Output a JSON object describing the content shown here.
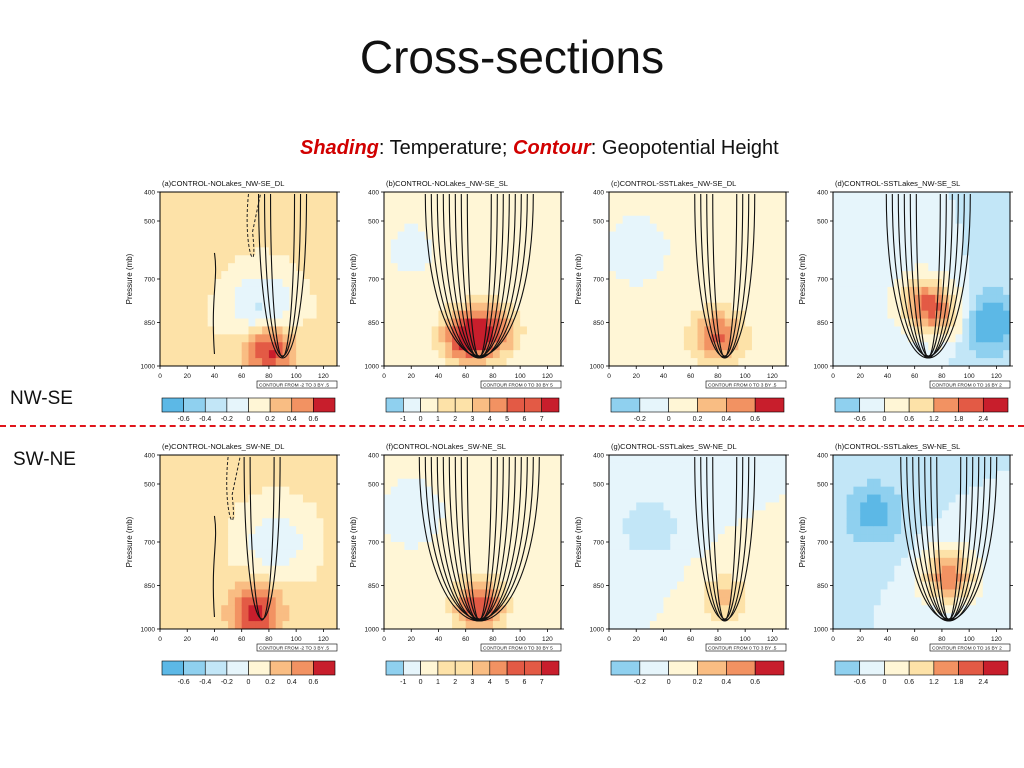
{
  "slide": {
    "title": "Cross-sections",
    "subtitle_parts": {
      "shading": "Shading",
      "shading_rest": ": Temperature; ",
      "contour": "Contour",
      "contour_rest": ": Geopotential Height"
    },
    "row_labels": [
      "NW-SE",
      "SW-NE"
    ]
  },
  "colors": {
    "accent": "#d10000",
    "separator": "#e0141a"
  },
  "chart_data": [
    {
      "type": "heatmap",
      "title": "(a)CONTROL-NOLakes_NW-SE_DL",
      "ylabel": "Pressure (mb)",
      "yticks": [
        "400",
        "500",
        "700",
        "850",
        "1000"
      ],
      "xticks": [
        "0",
        "20",
        "40",
        "60",
        "80",
        "100",
        "120"
      ],
      "xlim": [
        0,
        130
      ],
      "contour_note": "CONTOUR FROM -2 TO 3 BY .5",
      "colorbar": [
        "-0.6",
        "-0.4",
        "-0.2",
        "0",
        "0.2",
        "0.4",
        "0.6"
      ],
      "colorbar_min": -0.8,
      "colorbar_max": 0.8,
      "background": 0.15,
      "contour_center_x": 90,
      "contour_levels": 3,
      "hot_spots": [
        {
          "x": 80,
          "p": 940,
          "v": 0.6
        }
      ],
      "cold_spots": [
        {
          "x": 75,
          "p": 800,
          "v": -0.4
        }
      ],
      "dashed": true
    },
    {
      "type": "heatmap",
      "title": "(b)CONTROL-NOLakes_NW-SE_SL",
      "ylabel": "Pressure (mb)",
      "yticks": [
        "400",
        "500",
        "700",
        "850",
        "1000"
      ],
      "xticks": [
        "0",
        "20",
        "40",
        "60",
        "80",
        "100",
        "120"
      ],
      "xlim": [
        0,
        130
      ],
      "contour_note": "CONTOUR FROM 0 TO 30 BY 5",
      "colorbar": [
        "-1",
        "0",
        "1",
        "2",
        "3",
        "4",
        "5",
        "6",
        "7"
      ],
      "colorbar_min": -2,
      "colorbar_max": 8,
      "background": 0.3,
      "contour_center_x": 70,
      "contour_levels": 8,
      "hot_spots": [
        {
          "x": 60,
          "p": 900,
          "v": 6.5
        },
        {
          "x": 80,
          "p": 880,
          "v": 5
        }
      ],
      "cold_spots": [
        {
          "x": 20,
          "p": 600,
          "v": -0.5
        }
      ],
      "dashed": false
    },
    {
      "type": "heatmap",
      "title": "(c)CONTROL-SSTLakes_NW-SE_DL",
      "ylabel": "Pressure (mb)",
      "yticks": [
        "400",
        "500",
        "700",
        "850",
        "1000"
      ],
      "xticks": [
        "0",
        "20",
        "40",
        "60",
        "80",
        "100",
        "120"
      ],
      "xlim": [
        0,
        130
      ],
      "contour_note": "CONTOUR FROM 0 TO 3 BY .5",
      "colorbar": [
        "-0.2",
        "0",
        "0.2",
        "0.4",
        "0.6"
      ],
      "colorbar_min": -0.4,
      "colorbar_max": 0.8,
      "background": 0.05,
      "contour_center_x": 85,
      "contour_levels": 4,
      "hot_spots": [
        {
          "x": 80,
          "p": 900,
          "v": 0.5
        }
      ],
      "cold_spots": [
        {
          "x": 20,
          "p": 600,
          "v": -0.15
        }
      ],
      "dashed": false
    },
    {
      "type": "heatmap",
      "title": "(d)CONTROL-SSTLakes_NW-SE_SL",
      "ylabel": "Pressure (mb)",
      "yticks": [
        "400",
        "500",
        "700",
        "850",
        "1000"
      ],
      "xticks": [
        "0",
        "20",
        "40",
        "60",
        "80",
        "100",
        "120"
      ],
      "xlim": [
        0,
        130
      ],
      "contour_note": "CONTOUR FROM 0 TO 16 BY 2",
      "colorbar": [
        "-0.6",
        "0",
        "0.6",
        "1.2",
        "1.8",
        "2.4"
      ],
      "colorbar_min": -1.2,
      "colorbar_max": 3.0,
      "background": -0.3,
      "contour_center_x": 70,
      "contour_levels": 6,
      "hot_spots": [
        {
          "x": 65,
          "p": 780,
          "v": 1.8
        },
        {
          "x": 80,
          "p": 820,
          "v": 1.4
        }
      ],
      "cold_spots": [
        {
          "x": 115,
          "p": 850,
          "v": -1.0
        }
      ],
      "dashed": false
    },
    {
      "type": "heatmap",
      "title": "(e)CONTROL-NOLakes_SW-NE_DL",
      "ylabel": "Pressure (mb)",
      "yticks": [
        "400",
        "500",
        "700",
        "850",
        "1000"
      ],
      "xticks": [
        "0",
        "20",
        "40",
        "60",
        "80",
        "100",
        "120"
      ],
      "xlim": [
        0,
        130
      ],
      "contour_note": "CONTOUR FROM -2 TO 3 BY .5",
      "colorbar": [
        "-0.6",
        "-0.4",
        "-0.2",
        "0",
        "0.2",
        "0.4",
        "0.6"
      ],
      "colorbar_min": -0.8,
      "colorbar_max": 0.8,
      "background": 0.15,
      "contour_center_x": 75,
      "contour_levels": 2,
      "hot_spots": [
        {
          "x": 70,
          "p": 940,
          "v": 0.6
        }
      ],
      "cold_spots": [
        {
          "x": 85,
          "p": 700,
          "v": -0.3
        }
      ],
      "dashed": true
    },
    {
      "type": "heatmap",
      "title": "(f)CONTROL-NOLakes_SW-NE_SL",
      "ylabel": "Pressure (mb)",
      "yticks": [
        "400",
        "500",
        "700",
        "850",
        "1000"
      ],
      "xticks": [
        "0",
        "20",
        "40",
        "60",
        "80",
        "100",
        "120"
      ],
      "xlim": [
        0,
        130
      ],
      "contour_note": "CONTOUR FROM 0 TO 30 BY 5",
      "colorbar": [
        "-1",
        "0",
        "1",
        "2",
        "3",
        "4",
        "5",
        "6",
        "7"
      ],
      "colorbar_min": -2,
      "colorbar_max": 8,
      "background": 0.2,
      "contour_center_x": 70,
      "contour_levels": 9,
      "hot_spots": [
        {
          "x": 70,
          "p": 920,
          "v": 6.5
        }
      ],
      "cold_spots": [
        {
          "x": 20,
          "p": 600,
          "v": -0.6
        }
      ],
      "dashed": false
    },
    {
      "type": "heatmap",
      "title": "(g)CONTROL-SSTLakes_SW-NE_DL",
      "ylabel": "Pressure (mb)",
      "yticks": [
        "400",
        "500",
        "700",
        "850",
        "1000"
      ],
      "xticks": [
        "0",
        "20",
        "40",
        "60",
        "80",
        "100",
        "120"
      ],
      "xlim": [
        0,
        130
      ],
      "contour_note": "CONTOUR FROM 0 TO 3 BY .5",
      "colorbar": [
        "-0.2",
        "0",
        "0.2",
        "0.4",
        "0.6"
      ],
      "colorbar_min": -0.4,
      "colorbar_max": 0.8,
      "background": 0.0,
      "contour_center_x": 85,
      "contour_levels": 4,
      "hot_spots": [
        {
          "x": 85,
          "p": 900,
          "v": 0.3
        }
      ],
      "cold_spots": [
        {
          "x": 30,
          "p": 650,
          "v": -0.2
        }
      ],
      "dashed": false
    },
    {
      "type": "heatmap",
      "title": "(h)CONTROL-SSTLakes_SW-NE_SL",
      "ylabel": "Pressure (mb)",
      "yticks": [
        "400",
        "500",
        "700",
        "850",
        "1000"
      ],
      "xticks": [
        "0",
        "20",
        "40",
        "60",
        "80",
        "100",
        "120"
      ],
      "xlim": [
        0,
        130
      ],
      "contour_note": "CONTOUR FROM 0 TO 16 BY 2",
      "colorbar": [
        "-0.6",
        "0",
        "0.6",
        "1.2",
        "1.8",
        "2.4"
      ],
      "colorbar_min": -1.2,
      "colorbar_max": 3.0,
      "background": -0.3,
      "contour_center_x": 85,
      "contour_levels": 7,
      "hot_spots": [
        {
          "x": 85,
          "p": 820,
          "v": 2.2
        }
      ],
      "cold_spots": [
        {
          "x": 30,
          "p": 600,
          "v": -0.8
        }
      ],
      "dashed": false
    }
  ]
}
